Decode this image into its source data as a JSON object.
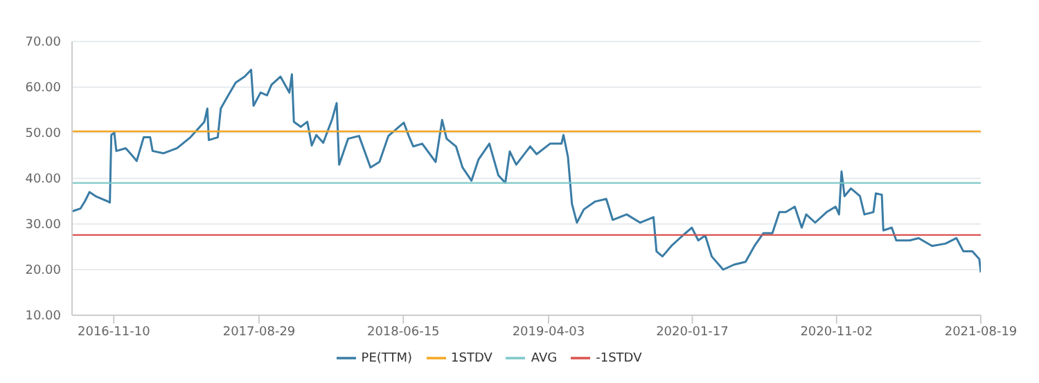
{
  "chart_data": {
    "type": "line",
    "xlim": [
      "2016-08-18",
      "2021-08-19"
    ],
    "ylim": [
      10,
      70
    ],
    "yticks": [
      {
        "value": 10,
        "label": "10.00"
      },
      {
        "value": 20,
        "label": "20.00"
      },
      {
        "value": 30,
        "label": "30.00"
      },
      {
        "value": 40,
        "label": "40.00"
      },
      {
        "value": 50,
        "label": "50.00"
      },
      {
        "value": 60,
        "label": "60.00"
      },
      {
        "value": 70,
        "label": "70.00"
      }
    ],
    "xticks": [
      "2016-11-10",
      "2017-08-29",
      "2018-06-15",
      "2019-04-03",
      "2020-01-17",
      "2020-11-02",
      "2021-08-19"
    ],
    "grid": "y",
    "legend": "bottom",
    "marker": "none",
    "line_style": "solid",
    "series": [
      {
        "name": "PE(TTM)",
        "color": "#3a7ca5",
        "x": [
          "2016-08-19",
          "2016-09-04",
          "2016-09-13",
          "2016-09-22",
          "2016-10-06",
          "2016-10-15",
          "2016-10-28",
          "2016-11-02",
          "2016-11-05",
          "2016-11-11",
          "2016-11-15",
          "2016-12-04",
          "2016-12-17",
          "2016-12-26",
          "2017-01-09",
          "2017-01-22",
          "2017-01-27",
          "2017-02-18",
          "2017-03-17",
          "2017-04-13",
          "2017-05-11",
          "2017-05-17",
          "2017-05-20",
          "2017-06-07",
          "2017-06-13",
          "2017-06-25",
          "2017-07-13",
          "2017-07-31",
          "2017-08-13",
          "2017-08-18",
          "2017-09-01",
          "2017-09-14",
          "2017-09-23",
          "2017-10-11",
          "2017-10-29",
          "2017-11-03",
          "2017-11-07",
          "2017-11-21",
          "2017-12-04",
          "2017-12-13",
          "2017-12-22",
          "2018-01-05",
          "2018-01-23",
          "2018-02-01",
          "2018-02-06",
          "2018-02-24",
          "2018-03-18",
          "2018-04-10",
          "2018-04-28",
          "2018-05-16",
          "2018-06-16",
          "2018-06-26",
          "2018-07-05",
          "2018-07-23",
          "2018-08-19",
          "2018-09-01",
          "2018-09-10",
          "2018-09-29",
          "2018-10-12",
          "2018-10-30",
          "2018-11-13",
          "2018-12-05",
          "2018-12-23",
          "2019-01-06",
          "2019-01-15",
          "2019-01-28",
          "2019-02-25",
          "2019-03-10",
          "2019-04-06",
          "2019-04-29",
          "2019-05-03",
          "2019-05-12",
          "2019-05-20",
          "2019-05-30",
          "2019-06-13",
          "2019-07-05",
          "2019-07-28",
          "2019-08-10",
          "2019-09-07",
          "2019-10-04",
          "2019-10-31",
          "2019-11-06",
          "2019-11-18",
          "2019-12-06",
          "2019-12-29",
          "2020-01-16",
          "2020-01-29",
          "2020-02-12",
          "2020-02-25",
          "2020-03-19",
          "2020-04-10",
          "2020-05-03",
          "2020-05-21",
          "2020-06-08",
          "2020-06-26",
          "2020-07-10",
          "2020-07-23",
          "2020-08-10",
          "2020-08-24",
          "2020-09-02",
          "2020-09-20",
          "2020-10-13",
          "2020-10-31",
          "2020-11-07",
          "2020-11-12",
          "2020-11-18",
          "2020-12-01",
          "2020-12-19",
          "2020-12-28",
          "2021-01-15",
          "2021-01-20",
          "2021-02-01",
          "2021-02-04",
          "2021-02-21",
          "2021-03-02",
          "2021-03-29",
          "2021-04-16",
          "2021-05-13",
          "2021-06-09",
          "2021-07-01",
          "2021-07-15",
          "2021-08-02",
          "2021-08-16",
          "2021-08-19"
        ],
        "values": [
          32.8,
          33.4,
          35,
          37,
          36,
          35.6,
          35,
          34.7,
          49.5,
          50,
          46,
          46.6,
          45,
          43.8,
          49,
          49,
          46,
          45.5,
          46.6,
          49,
          52.4,
          55.3,
          48.4,
          49,
          55.3,
          57.6,
          61,
          62.3,
          63.8,
          55.9,
          58.8,
          58.2,
          60.5,
          62.3,
          58.8,
          62.8,
          52.4,
          51.3,
          52.4,
          47.2,
          49.5,
          47.8,
          53,
          56.5,
          43,
          48.7,
          49.3,
          42.4,
          43.6,
          49.3,
          52.2,
          49.3,
          47,
          47.6,
          43.6,
          52.8,
          48.7,
          47,
          42.4,
          39.5,
          44.1,
          47.6,
          40.7,
          39,
          45.9,
          43,
          47,
          45.3,
          47.6,
          47.6,
          49.5,
          44.7,
          34.4,
          30.3,
          33.2,
          34.9,
          35.5,
          30.9,
          32.1,
          30.3,
          31.5,
          24,
          22.9,
          25.2,
          27.5,
          29.2,
          26.4,
          27.5,
          22.9,
          20,
          21.1,
          21.7,
          25.2,
          28,
          28,
          32.6,
          32.6,
          33.8,
          29.2,
          32.1,
          30.3,
          32.6,
          33.8,
          32.1,
          41.5,
          36.1,
          37.8,
          36.1,
          32.1,
          32.6,
          36.7,
          36.4,
          28.6,
          29.2,
          26.4,
          26.4,
          26.9,
          25.2,
          25.7,
          26.9,
          24,
          24,
          22.3,
          19.4
        ]
      },
      {
        "name": "1STDV",
        "color": "#f5a623",
        "x": [
          "2016-08-18",
          "2021-08-19"
        ],
        "values": [
          50.3,
          50.3
        ]
      },
      {
        "name": "AVG",
        "color": "#7ec8c8",
        "x": [
          "2016-08-18",
          "2021-08-19"
        ],
        "values": [
          39,
          39
        ]
      },
      {
        "name": "-1STDV",
        "color": "#d9534f",
        "x": [
          "2016-08-18",
          "2021-08-19"
        ],
        "values": [
          27.6,
          27.6
        ]
      }
    ]
  }
}
